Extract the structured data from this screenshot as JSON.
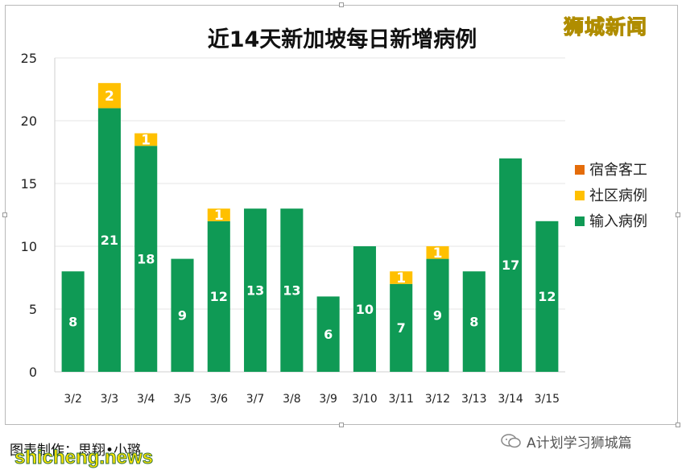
{
  "chart_data": {
    "type": "bar",
    "stacked": true,
    "title": "近14天新加坡每日新增病例",
    "categories": [
      "3/2",
      "3/3",
      "3/4",
      "3/5",
      "3/6",
      "3/7",
      "3/8",
      "3/9",
      "3/10",
      "3/11",
      "3/12",
      "3/13",
      "3/14",
      "3/15"
    ],
    "series": [
      {
        "name": "输入病例",
        "color": "#0f9a55",
        "values": [
          8,
          21,
          18,
          9,
          12,
          13,
          13,
          6,
          10,
          7,
          9,
          8,
          17,
          12
        ]
      },
      {
        "name": "社区病例",
        "color": "#ffc000",
        "values": [
          0,
          2,
          1,
          0,
          1,
          0,
          0,
          0,
          0,
          1,
          1,
          0,
          0,
          0
        ]
      },
      {
        "name": "宿舍客工",
        "color": "#e46c0a",
        "values": [
          0,
          0,
          0,
          0,
          0,
          0,
          0,
          0,
          0,
          0,
          0,
          0,
          0,
          0
        ]
      }
    ],
    "legend_order": [
      "宿舍客工",
      "社区病例",
      "输入病例"
    ],
    "legend_position": "right",
    "ylim": [
      0,
      25
    ],
    "yticks": [
      0,
      5,
      10,
      15,
      20,
      25
    ],
    "grid": true
  },
  "brand_top": "狮城新闻",
  "credit": "图表制作：思翔•小璐",
  "watermark_bottom": "shicheng.news",
  "wechat_label": "A计划学习狮城篇",
  "colors": {
    "label_text": "#ffffff",
    "axis_text": "#222222",
    "grid": "#e6e6e6"
  }
}
